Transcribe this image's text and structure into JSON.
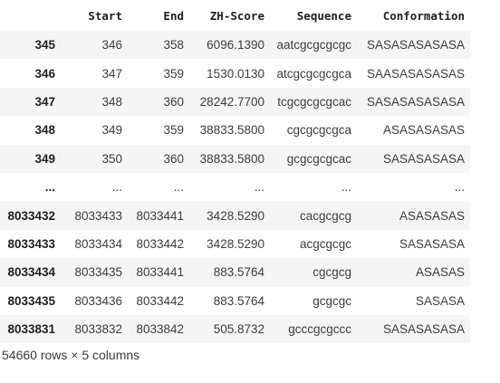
{
  "table": {
    "headers": [
      "",
      "Start",
      "End",
      "ZH-Score",
      "Sequence",
      "Conformation"
    ],
    "rows": [
      {
        "index": "345",
        "cells": [
          "346",
          "358",
          "6096.1390",
          "aatcgcgcgcgc",
          "SASASASASASA"
        ]
      },
      {
        "index": "346",
        "cells": [
          "347",
          "359",
          "1530.0130",
          "atcgcgcgcgca",
          "SAASASASASAS"
        ]
      },
      {
        "index": "347",
        "cells": [
          "348",
          "360",
          "28242.7700",
          "tcgcgcgcgcac",
          "SASASASASASA"
        ]
      },
      {
        "index": "348",
        "cells": [
          "349",
          "359",
          "38833.5800",
          "cgcgcgcgca",
          "ASASASASAS"
        ]
      },
      {
        "index": "349",
        "cells": [
          "350",
          "360",
          "38833.5800",
          "gcgcgcgcac",
          "SASASASASA"
        ]
      },
      {
        "index": "...",
        "cells": [
          "...",
          "...",
          "...",
          "...",
          "..."
        ]
      },
      {
        "index": "8033432",
        "cells": [
          "8033433",
          "8033441",
          "3428.5290",
          "cacgcgcg",
          "ASASASAS"
        ]
      },
      {
        "index": "8033433",
        "cells": [
          "8033434",
          "8033442",
          "3428.5290",
          "acgcgcgc",
          "SASASASA"
        ]
      },
      {
        "index": "8033434",
        "cells": [
          "8033435",
          "8033441",
          "883.5764",
          "cgcgcg",
          "ASASAS"
        ]
      },
      {
        "index": "8033435",
        "cells": [
          "8033436",
          "8033442",
          "883.5764",
          "gcgcgc",
          "SASASA"
        ]
      },
      {
        "index": "8033831",
        "cells": [
          "8033832",
          "8033842",
          "505.8732",
          "gcccgcgccc",
          "SASASASASA"
        ]
      }
    ]
  },
  "caption": "54660 rows × 5 columns"
}
